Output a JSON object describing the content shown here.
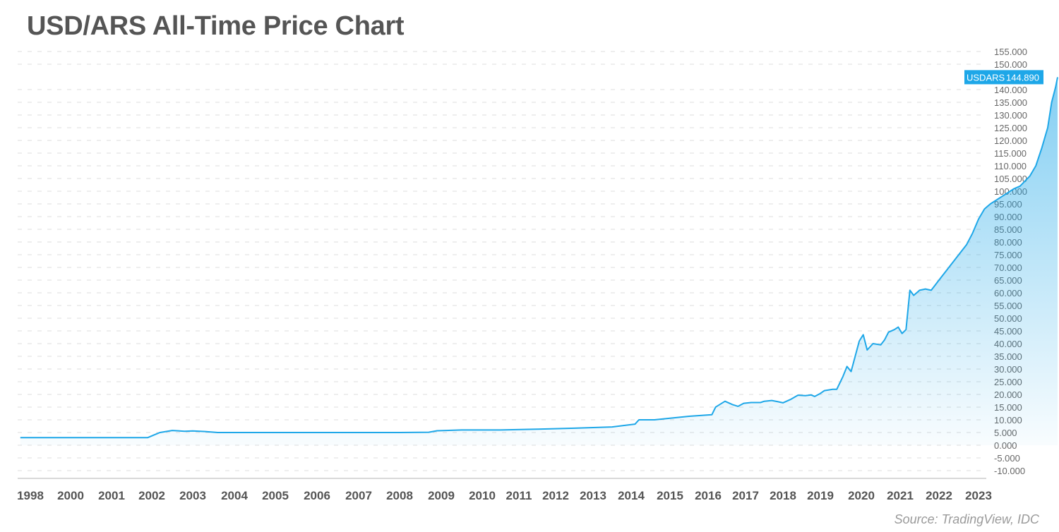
{
  "source": "Source: TradingView, IDC",
  "chart_data": {
    "type": "area",
    "title": "USD/ARS All-Time Price Chart",
    "xlabel": "",
    "ylabel": "",
    "ylim": [
      -10000,
      155000
    ],
    "y_ticks": [
      155000,
      150000,
      140000,
      135000,
      130000,
      125000,
      120000,
      115000,
      110000,
      105000,
      100000,
      95000,
      90000,
      85000,
      80000,
      75000,
      70000,
      65000,
      60000,
      55000,
      50000,
      45000,
      40000,
      35000,
      30000,
      25000,
      20000,
      15000,
      10000,
      5000,
      0,
      -5000,
      -10000
    ],
    "y_tick_labels": [
      "155.000",
      "150.000",
      "140.000",
      "135.000",
      "130.000",
      "125.000",
      "120.000",
      "115.000",
      "110.000",
      "105.000",
      "100.000",
      "95.000",
      "90.000",
      "85.000",
      "80.000",
      "75.000",
      "70.000",
      "65.000",
      "60.000",
      "55.000",
      "50.000",
      "45.000",
      "40.000",
      "35.000",
      "30.000",
      "25.000",
      "20.000",
      "15.000",
      "10.000",
      "5.000",
      "0.000",
      "-5.000",
      "-10.000"
    ],
    "x_ticks": [
      "1998",
      "2000",
      "2001",
      "2002",
      "2003",
      "2004",
      "2005",
      "2006",
      "2007",
      "2008",
      "2009",
      "2010",
      "2011",
      "2012",
      "2013",
      "2014",
      "2015",
      "2016",
      "2017",
      "2018",
      "2019",
      "2020",
      "2021",
      "2022",
      "2023"
    ],
    "grid": true,
    "last_value_label": "USDARS",
    "last_value": "144.890",
    "colors": {
      "line": "#1ea7e8",
      "badge": "#1ea7e8",
      "grid": "#dcdcdc"
    },
    "series": [
      {
        "points": [
          [
            "1997.5",
            3000
          ],
          [
            "2001.9",
            3000
          ],
          [
            "2002.05",
            4000
          ],
          [
            "2002.2",
            5000
          ],
          [
            "2002.5",
            5800
          ],
          [
            "2002.8",
            5500
          ],
          [
            "2003.0",
            5600
          ],
          [
            "2003.3",
            5400
          ],
          [
            "2003.6",
            5000
          ],
          [
            "2006.0",
            5000
          ],
          [
            "2008.0",
            5000
          ],
          [
            "2008.7",
            5100
          ],
          [
            "2008.9",
            5700
          ],
          [
            "2009.5",
            6000
          ],
          [
            "2010.5",
            6000
          ],
          [
            "2011.5",
            6300
          ],
          [
            "2012.5",
            6700
          ],
          [
            "2013.5",
            7200
          ],
          [
            "2014.1",
            8300
          ],
          [
            "2014.2",
            10000
          ],
          [
            "2014.6",
            10000
          ],
          [
            "2015.0",
            10600
          ],
          [
            "2015.5",
            11400
          ],
          [
            "2016.1",
            12000
          ],
          [
            "2016.2",
            15000
          ],
          [
            "2016.45",
            17300
          ],
          [
            "2016.65",
            16000
          ],
          [
            "2016.8",
            15300
          ],
          [
            "2016.95",
            16500
          ],
          [
            "2017.15",
            16800
          ],
          [
            "2017.4",
            16800
          ],
          [
            "2017.5",
            17300
          ],
          [
            "2017.7",
            17600
          ],
          [
            "2017.85",
            17200
          ],
          [
            "2018.0",
            16700
          ],
          [
            "2018.2",
            18000
          ],
          [
            "2018.4",
            19700
          ],
          [
            "2018.6",
            19500
          ],
          [
            "2018.75",
            19800
          ],
          [
            "2018.85",
            19200
          ],
          [
            "2019.0",
            20400
          ],
          [
            "2019.1",
            21500
          ],
          [
            "2019.3",
            22000
          ],
          [
            "2019.4",
            22000
          ],
          [
            "2019.55",
            27000
          ],
          [
            "2019.65",
            31000
          ],
          [
            "2019.75",
            29000
          ],
          [
            "2019.85",
            35000
          ],
          [
            "2019.95",
            41000
          ],
          [
            "2020.05",
            43500
          ],
          [
            "2020.15",
            37500
          ],
          [
            "2020.3",
            40000
          ],
          [
            "2020.5",
            39500
          ],
          [
            "2020.6",
            41500
          ],
          [
            "2020.7",
            44500
          ],
          [
            "2020.85",
            45500
          ],
          [
            "2020.95",
            46500
          ],
          [
            "2021.05",
            44000
          ],
          [
            "2021.15",
            45500
          ],
          [
            "2021.25",
            61000
          ],
          [
            "2021.35",
            59000
          ],
          [
            "2021.5",
            61000
          ],
          [
            "2021.65",
            61500
          ],
          [
            "2021.8",
            61000
          ],
          [
            "2022.0",
            65000
          ],
          [
            "2022.2",
            69000
          ],
          [
            "2022.5",
            75000
          ],
          [
            "2022.7",
            79000
          ],
          [
            "2022.85",
            83500
          ],
          [
            "2023.0",
            89000
          ],
          [
            "2023.15",
            93000
          ],
          [
            "2023.3",
            95000
          ],
          [
            "2023.6",
            98000
          ],
          [
            "2023.9",
            101000
          ],
          [
            "2024.05",
            102000
          ],
          [
            "2024.3",
            106000
          ],
          [
            "2024.45",
            110000
          ],
          [
            "2024.6",
            117000
          ],
          [
            "2024.75",
            125000
          ],
          [
            "2024.85",
            135000
          ],
          [
            "2024.95",
            141000
          ],
          [
            "2025.0",
            144890
          ]
        ]
      }
    ]
  }
}
